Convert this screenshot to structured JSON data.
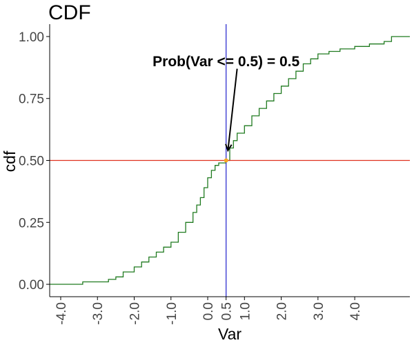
{
  "chart_data": {
    "type": "line",
    "title": "CDF",
    "xlabel": "Var",
    "ylabel": "cdf",
    "xlim": [
      -4.3,
      5.5
    ],
    "ylim": [
      -0.05,
      1.05
    ],
    "x_ticks": [
      -4.0,
      -3.0,
      -2.0,
      -1.0,
      0.0,
      0.5,
      1.0,
      2.0,
      3.0,
      4.0
    ],
    "x_tick_labels": [
      "-4.0",
      "-3.0",
      "-2.0",
      "-1.0",
      "0.0",
      "0.5",
      "1.0",
      "2.0",
      "3.0",
      "4.0"
    ],
    "y_ticks": [
      0.0,
      0.25,
      0.5,
      0.75,
      1.0
    ],
    "y_tick_labels": [
      "0.00",
      "0.25",
      "0.50",
      "0.75",
      "1.00"
    ],
    "grid": false,
    "series": [
      {
        "color": "#1f7a1f",
        "x": [
          -4.3,
          -3.7,
          -3.4,
          -3.0,
          -2.7,
          -2.5,
          -2.3,
          -2.0,
          -1.8,
          -1.6,
          -1.4,
          -1.2,
          -1.0,
          -0.8,
          -0.6,
          -0.4,
          -0.3,
          -0.2,
          -0.1,
          0.0,
          0.1,
          0.2,
          0.3,
          0.5,
          0.6,
          0.7,
          0.8,
          1.0,
          1.2,
          1.4,
          1.6,
          1.8,
          2.0,
          2.2,
          2.4,
          2.6,
          2.8,
          3.0,
          3.3,
          3.6,
          4.0,
          4.4,
          4.8,
          5.0,
          5.5
        ],
        "y": [
          0.0,
          0.0,
          0.01,
          0.01,
          0.02,
          0.03,
          0.05,
          0.07,
          0.09,
          0.11,
          0.13,
          0.15,
          0.17,
          0.21,
          0.25,
          0.29,
          0.32,
          0.35,
          0.39,
          0.43,
          0.46,
          0.48,
          0.49,
          0.5,
          0.55,
          0.58,
          0.61,
          0.64,
          0.68,
          0.71,
          0.74,
          0.77,
          0.8,
          0.83,
          0.86,
          0.89,
          0.91,
          0.93,
          0.94,
          0.95,
          0.96,
          0.97,
          0.98,
          1.0,
          1.0
        ]
      }
    ],
    "reference_lines": {
      "vertical": {
        "x": 0.5,
        "color": "#1f1fcc"
      },
      "horizontal": {
        "y": 0.5,
        "color": "#e0301e"
      }
    },
    "highlight_point": {
      "x": 0.5,
      "y": 0.5,
      "color": "#f5a623"
    },
    "annotation": {
      "text": "Prob(Var <= 0.5) = 0.5",
      "text_x": 0.5,
      "text_y": 0.9,
      "arrow_from": [
        0.8,
        0.87
      ],
      "arrow_to": [
        0.55,
        0.54
      ]
    }
  }
}
